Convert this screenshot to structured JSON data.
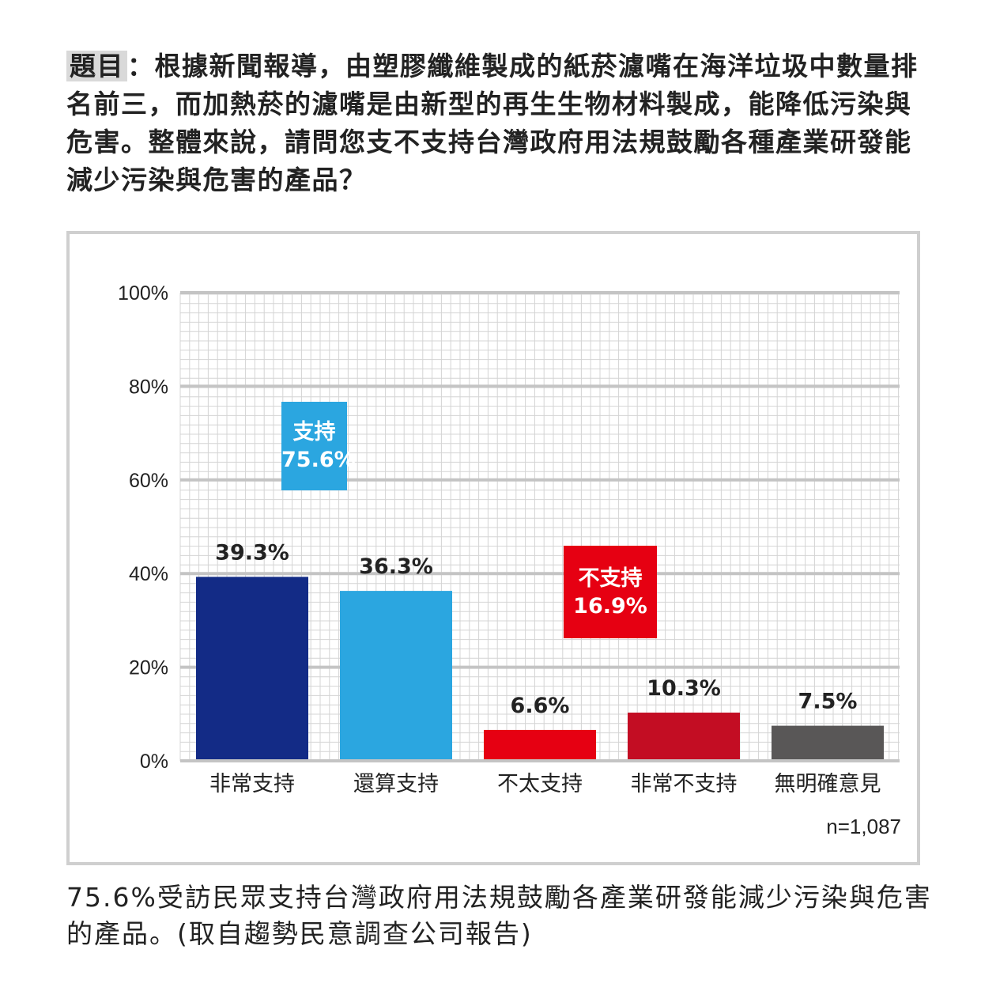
{
  "question": {
    "label": "題目",
    "text": "：根據新聞報導，由塑膠纖維製成的紙菸濾嘴在海洋垃圾中數量排名前三，而加熱菸的濾嘴是由新型的再生生物材料製成，能降低污染與危害。整體來說，請問您支不支持台灣政府用法規鼓勵各種產業研發能減少污染與危害的產品？"
  },
  "chart_data": {
    "type": "bar",
    "categories": [
      "非常支持",
      "還算支持",
      "不太支持",
      "非常不支持",
      "無明確意見"
    ],
    "values": [
      39.3,
      36.3,
      6.6,
      10.3,
      7.5
    ],
    "value_labels": [
      "39.3%",
      "36.3%",
      "6.6%",
      "10.3%",
      "7.5%"
    ],
    "colors": [
      "#132b86",
      "#2ba6e0",
      "#e60012",
      "#c30d23",
      "#595757"
    ],
    "ylim": [
      0,
      100
    ],
    "yticks": [
      0,
      20,
      40,
      60,
      80,
      100
    ],
    "ytick_labels": [
      "0%",
      "20%",
      "40%",
      "60%",
      "80%",
      "100%"
    ],
    "grid": true,
    "xlabel": "",
    "ylabel": "",
    "title": ""
  },
  "groups": {
    "support": {
      "label": "支持",
      "value": "75.6%",
      "color": "#2ba6e0"
    },
    "oppose": {
      "label": "不支持",
      "value": "16.9%",
      "color": "#e60012"
    }
  },
  "sample_size": "n=1,087",
  "caption": "75.6%受訪民眾支持台灣政府用法規鼓勵各產業研發能減少污染與危害的產品。(取自趨勢民意調查公司報告)"
}
